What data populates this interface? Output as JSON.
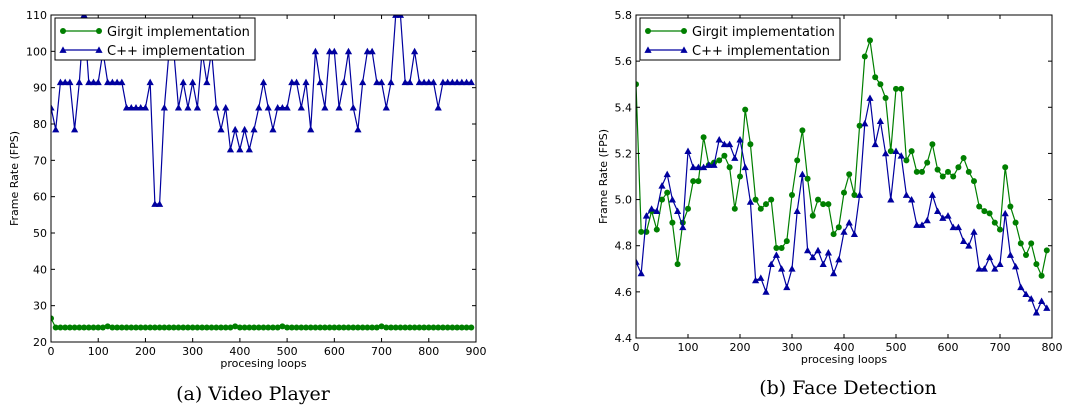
{
  "chart_data": [
    {
      "type": "line",
      "caption": "(a) Video Player",
      "xlabel": "procesing loops",
      "ylabel": "Frame Rate (FPS)",
      "xlim": [
        0,
        900
      ],
      "ylim": [
        20,
        110
      ],
      "xticks": [
        0,
        100,
        200,
        300,
        400,
        500,
        600,
        700,
        800,
        900
      ],
      "yticks": [
        20,
        30,
        40,
        50,
        60,
        70,
        80,
        90,
        100,
        110
      ],
      "legend": "top-left",
      "grid": false,
      "series": [
        {
          "name": "Girgit implementation",
          "color": "#007f00",
          "marker": "circle",
          "x": [
            0,
            10,
            20,
            30,
            40,
            50,
            60,
            70,
            80,
            90,
            100,
            110,
            120,
            130,
            140,
            150,
            160,
            170,
            180,
            190,
            200,
            210,
            220,
            230,
            240,
            250,
            260,
            270,
            280,
            290,
            300,
            310,
            320,
            330,
            340,
            350,
            360,
            370,
            380,
            390,
            400,
            410,
            420,
            430,
            440,
            450,
            460,
            470,
            480,
            490,
            500,
            510,
            520,
            530,
            540,
            550,
            560,
            570,
            580,
            590,
            600,
            610,
            620,
            630,
            640,
            650,
            660,
            670,
            680,
            690,
            700,
            710,
            720,
            730,
            740,
            750,
            760,
            770,
            780,
            790,
            800,
            810,
            820,
            830,
            840,
            850,
            860,
            870,
            880,
            890
          ],
          "y": [
            26.5,
            24,
            24,
            24,
            24,
            24,
            24,
            24,
            24,
            24,
            24,
            24,
            24.3,
            24,
            24,
            24,
            24,
            24,
            24,
            24,
            24,
            24,
            24,
            24,
            24,
            24,
            24,
            24,
            24,
            24,
            24,
            24,
            24,
            24,
            24,
            24,
            24,
            24,
            24,
            24.3,
            24,
            24,
            24,
            24,
            24,
            24,
            24,
            24,
            24,
            24.3,
            24,
            24,
            24,
            24,
            24,
            24,
            24,
            24,
            24,
            24,
            24,
            24,
            24,
            24,
            24,
            24,
            24,
            24,
            24,
            24,
            24.3,
            24,
            24,
            24,
            24,
            24,
            24,
            24,
            24,
            24,
            24,
            24,
            24,
            24,
            24,
            24,
            24,
            24,
            24,
            24
          ]
        },
        {
          "name": "C++ implementation",
          "color": "#00009f",
          "marker": "triangle",
          "x": [
            0,
            10,
            20,
            30,
            40,
            50,
            60,
            70,
            80,
            90,
            100,
            110,
            120,
            130,
            140,
            150,
            160,
            170,
            180,
            190,
            200,
            210,
            220,
            230,
            240,
            250,
            260,
            270,
            280,
            290,
            300,
            310,
            320,
            330,
            340,
            350,
            360,
            370,
            380,
            390,
            400,
            410,
            420,
            430,
            440,
            450,
            460,
            470,
            480,
            490,
            500,
            510,
            520,
            530,
            540,
            550,
            560,
            570,
            580,
            590,
            600,
            610,
            620,
            630,
            640,
            650,
            660,
            670,
            680,
            690,
            700,
            710,
            720,
            730,
            740,
            750,
            760,
            770,
            780,
            790,
            800,
            810,
            820,
            830,
            840,
            850,
            860,
            870,
            880,
            890
          ],
          "y": [
            84.5,
            78.5,
            91.5,
            91.5,
            91.5,
            78.5,
            91.5,
            110,
            91.5,
            91.5,
            91.5,
            100,
            91.5,
            91.5,
            91.5,
            91.5,
            84.5,
            84.5,
            84.5,
            84.5,
            84.5,
            91.5,
            58,
            58,
            84.5,
            100,
            100,
            84.5,
            91.5,
            84.5,
            91.5,
            84.5,
            100,
            91.5,
            100,
            84.5,
            78.5,
            84.5,
            73,
            78.5,
            73,
            78.5,
            73,
            78.5,
            84.5,
            91.5,
            84.5,
            78.5,
            84.5,
            84.5,
            84.5,
            91.5,
            91.5,
            84.5,
            91.5,
            78.5,
            100,
            91.5,
            84.5,
            100,
            100,
            84.5,
            91.5,
            100,
            84.5,
            78.5,
            91.5,
            100,
            100,
            91.5,
            91.5,
            84.5,
            91.5,
            110,
            110,
            91.5,
            91.5,
            100,
            91.5,
            91.5,
            91.5,
            91.5,
            84.5,
            91.5,
            91.5,
            91.5,
            91.5,
            91.5,
            91.5,
            91.5
          ]
        }
      ]
    },
    {
      "type": "line",
      "caption": "(b) Face Detection",
      "xlabel": "procesing loops",
      "ylabel": "Frame Rate (FPS)",
      "xlim": [
        0,
        800
      ],
      "ylim": [
        4.4,
        5.8
      ],
      "xticks": [
        0,
        100,
        200,
        300,
        400,
        500,
        600,
        700,
        800
      ],
      "yticks": [
        4.4,
        4.6,
        4.8,
        5.0,
        5.2,
        5.4,
        5.6,
        5.8
      ],
      "legend": "top-left",
      "grid": false,
      "series": [
        {
          "name": "Girgit implementation",
          "color": "#007f00",
          "marker": "circle",
          "x": [
            0,
            10,
            20,
            30,
            40,
            50,
            60,
            70,
            80,
            90,
            100,
            110,
            120,
            130,
            140,
            150,
            160,
            170,
            180,
            190,
            200,
            210,
            220,
            230,
            240,
            250,
            260,
            270,
            280,
            290,
            300,
            310,
            320,
            330,
            340,
            350,
            360,
            370,
            380,
            390,
            400,
            410,
            420,
            430,
            440,
            450,
            460,
            470,
            480,
            490,
            500,
            510,
            520,
            530,
            540,
            550,
            560,
            570,
            580,
            590,
            600,
            610,
            620,
            630,
            640,
            650,
            660,
            670,
            680,
            690,
            700,
            710,
            720,
            730,
            740,
            750,
            760,
            770,
            780,
            790
          ],
          "y": [
            5.5,
            4.86,
            4.86,
            4.95,
            4.87,
            5.0,
            5.03,
            4.9,
            4.72,
            4.9,
            4.96,
            5.08,
            5.08,
            5.27,
            5.15,
            5.16,
            5.17,
            5.19,
            5.14,
            4.96,
            5.1,
            5.39,
            5.24,
            5.0,
            4.96,
            4.98,
            5.0,
            4.79,
            4.79,
            4.82,
            5.02,
            5.17,
            5.3,
            5.09,
            4.93,
            5.0,
            4.98,
            4.98,
            4.85,
            4.88,
            5.03,
            5.11,
            5.02,
            5.32,
            5.62,
            5.69,
            5.53,
            5.5,
            5.44,
            5.21,
            5.48,
            5.48,
            5.17,
            5.21,
            5.12,
            5.12,
            5.16,
            5.24,
            5.13,
            5.1,
            5.12,
            5.1,
            5.14,
            5.18,
            5.12,
            5.08,
            4.97,
            4.95,
            4.94,
            4.9,
            4.87,
            5.14,
            4.97,
            4.9,
            4.81,
            4.76,
            4.81,
            4.72,
            4.67,
            4.78
          ]
        },
        {
          "name": "C++ implementation",
          "color": "#00009f",
          "marker": "triangle",
          "x": [
            0,
            10,
            20,
            30,
            40,
            50,
            60,
            70,
            80,
            90,
            100,
            110,
            120,
            130,
            140,
            150,
            160,
            170,
            180,
            190,
            200,
            210,
            220,
            230,
            240,
            250,
            260,
            270,
            280,
            290,
            300,
            310,
            320,
            330,
            340,
            350,
            360,
            370,
            380,
            390,
            400,
            410,
            420,
            430,
            440,
            450,
            460,
            470,
            480,
            490,
            500,
            510,
            520,
            530,
            540,
            550,
            560,
            570,
            580,
            590,
            600,
            610,
            620,
            630,
            640,
            650,
            660,
            670,
            680,
            690,
            700,
            710,
            720,
            730,
            740,
            750,
            760,
            770,
            780,
            790
          ],
          "y": [
            4.73,
            4.68,
            4.93,
            4.96,
            4.95,
            5.06,
            5.11,
            5.0,
            4.95,
            4.88,
            5.21,
            5.14,
            5.14,
            5.14,
            5.15,
            5.15,
            5.26,
            5.24,
            5.24,
            5.18,
            5.26,
            5.14,
            4.99,
            4.65,
            4.66,
            4.6,
            4.72,
            4.76,
            4.7,
            4.62,
            4.7,
            4.95,
            5.11,
            4.78,
            4.75,
            4.78,
            4.72,
            4.77,
            4.68,
            4.74,
            4.86,
            4.9,
            4.85,
            5.02,
            5.33,
            5.44,
            5.24,
            5.34,
            5.2,
            5.0,
            5.21,
            5.19,
            5.02,
            5.0,
            4.89,
            4.89,
            4.91,
            5.02,
            4.95,
            4.92,
            4.93,
            4.88,
            4.88,
            4.82,
            4.8,
            4.86,
            4.7,
            4.7,
            4.75,
            4.7,
            4.72,
            4.94,
            4.76,
            4.71,
            4.62,
            4.59,
            4.57,
            4.51,
            4.56,
            4.53
          ]
        }
      ]
    }
  ]
}
